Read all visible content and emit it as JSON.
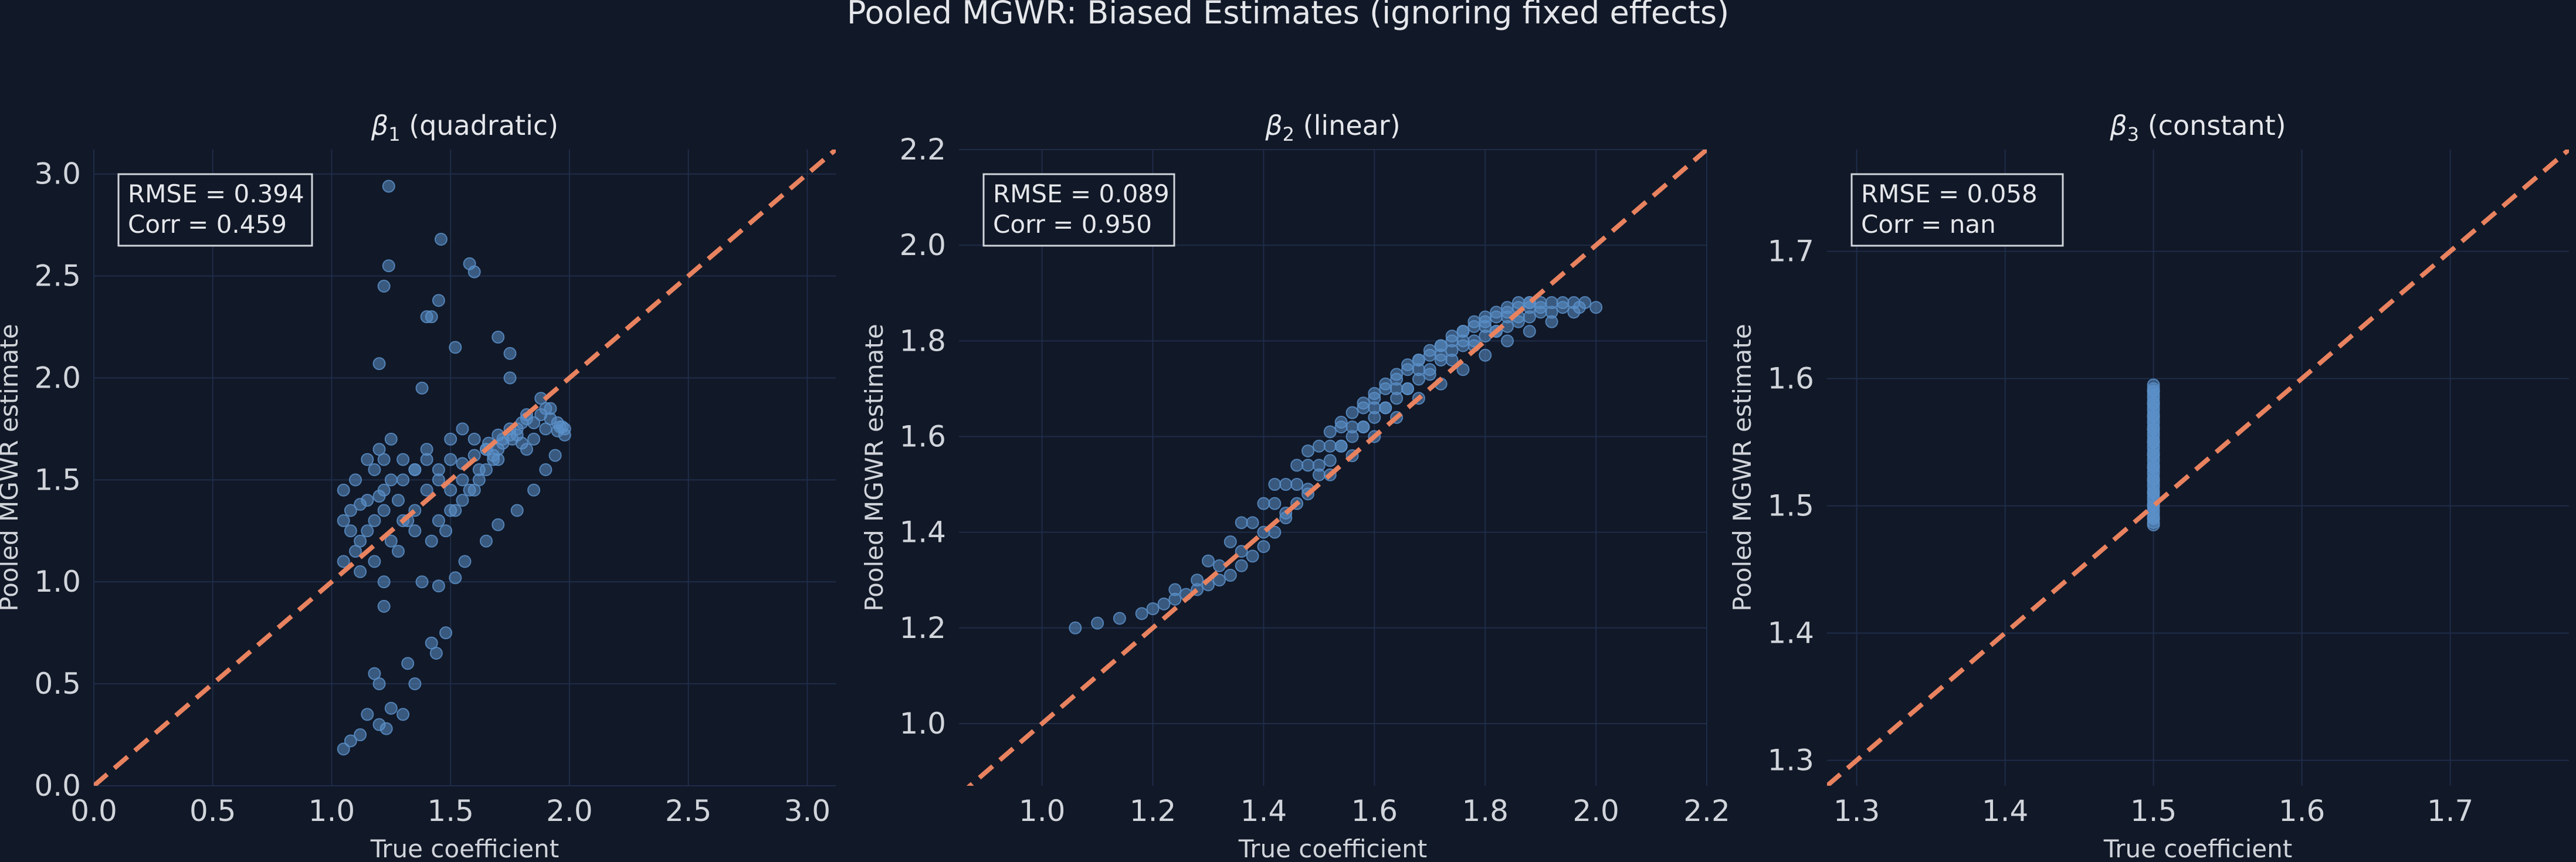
{
  "figure_title": "Pooled MGWR: Biased Estimates (ignoring fixed effects)",
  "colors": {
    "background": "#111827",
    "grid": "#1f2d4a",
    "points": "#5b8fc8",
    "reference_line": "#e8825f",
    "text": "#e5e7eb"
  },
  "chart_data": [
    {
      "type": "scatter",
      "title_symbol": "β",
      "title_sub": "1",
      "title_text": " (quadratic)",
      "xlabel": "True coefficient",
      "ylabel": "Pooled MGWR estimate",
      "xlim": [
        0.0,
        3.12
      ],
      "ylim": [
        0.0,
        3.12
      ],
      "xticks": [
        "0.0",
        "0.5",
        "1.0",
        "1.5",
        "2.0",
        "2.5",
        "3.0"
      ],
      "yticks": [
        "0.0",
        "0.5",
        "1.0",
        "1.5",
        "2.0",
        "2.5",
        "3.0"
      ],
      "grid": true,
      "reference_line": "y = x",
      "stats": [
        "RMSE = 0.394",
        "Corr = 0.459"
      ],
      "x": [
        1.05,
        1.08,
        1.12,
        1.15,
        1.2,
        1.22,
        1.25,
        1.08,
        1.12,
        1.18,
        1.22,
        1.28,
        1.32,
        1.05,
        1.1,
        1.15,
        1.25,
        1.3,
        1.35,
        1.4,
        1.18,
        1.22,
        1.3,
        1.35,
        1.4,
        1.45,
        1.5,
        1.55,
        1.45,
        1.5,
        1.55,
        1.6,
        1.62,
        1.65,
        1.68,
        1.7,
        1.72,
        1.75,
        1.78,
        1.8,
        1.82,
        1.85,
        1.88,
        1.9,
        1.92,
        1.95,
        1.97,
        1.98,
        1.6,
        1.65,
        1.7,
        1.75,
        1.8,
        1.85,
        1.9,
        1.95,
        1.5,
        1.55,
        1.6,
        1.65,
        1.7,
        1.4,
        1.45,
        1.5,
        1.55,
        1.3,
        1.35,
        1.2,
        1.25,
        1.15,
        1.1,
        1.05,
        1.12,
        1.18,
        1.22,
        1.28,
        1.35,
        1.42,
        1.48,
        1.52,
        1.58,
        1.62,
        1.68,
        1.72,
        1.78,
        1.82,
        1.88,
        1.92,
        1.96,
        1.24,
        1.24,
        1.46,
        1.45,
        1.58,
        1.6,
        1.2,
        1.22,
        1.4,
        1.42,
        1.52,
        1.7,
        1.75,
        1.75,
        1.38,
        1.2,
        1.23,
        1.48,
        1.18,
        1.2,
        1.15,
        1.3,
        1.12,
        1.05,
        1.08,
        1.25,
        1.42,
        1.44,
        1.22,
        1.32,
        1.35,
        1.38,
        1.45,
        1.52,
        1.56,
        1.65,
        1.7,
        1.78,
        1.85,
        1.9,
        1.94,
        1.98,
        1.82,
        1.76,
        1.66
      ],
      "y": [
        1.3,
        1.35,
        1.38,
        1.4,
        1.42,
        1.45,
        1.5,
        1.25,
        1.2,
        1.3,
        1.35,
        1.4,
        1.3,
        1.1,
        1.15,
        1.25,
        1.2,
        1.3,
        1.35,
        1.45,
        1.55,
        1.6,
        1.5,
        1.55,
        1.6,
        1.5,
        1.45,
        1.5,
        1.3,
        1.35,
        1.4,
        1.45,
        1.5,
        1.55,
        1.6,
        1.65,
        1.7,
        1.72,
        1.75,
        1.78,
        1.8,
        1.78,
        1.82,
        1.85,
        1.8,
        1.78,
        1.76,
        1.75,
        1.7,
        1.65,
        1.72,
        1.75,
        1.68,
        1.7,
        1.75,
        1.74,
        1.6,
        1.58,
        1.62,
        1.65,
        1.6,
        1.65,
        1.55,
        1.7,
        1.75,
        1.6,
        1.55,
        1.65,
        1.7,
        1.6,
        1.5,
        1.45,
        1.05,
        1.1,
        1.0,
        1.15,
        1.25,
        1.2,
        1.25,
        1.35,
        1.45,
        1.55,
        1.62,
        1.68,
        1.72,
        1.82,
        1.9,
        1.85,
        1.76,
        2.94,
        2.55,
        2.68,
        2.38,
        2.56,
        2.52,
        2.07,
        2.45,
        2.3,
        2.3,
        2.15,
        2.2,
        2.12,
        2.0,
        1.95,
        0.3,
        0.28,
        0.75,
        0.55,
        0.5,
        0.35,
        0.35,
        0.25,
        0.18,
        0.22,
        0.38,
        0.7,
        0.65,
        0.88,
        0.6,
        0.5,
        1.0,
        0.98,
        1.02,
        1.1,
        1.2,
        1.28,
        1.35,
        1.45,
        1.55,
        1.62,
        1.72,
        1.65,
        1.7,
        1.68
      ]
    },
    {
      "type": "scatter",
      "title_symbol": "β",
      "title_sub": "2",
      "title_text": " (linear)",
      "xlabel": "True coefficient",
      "ylabel": "Pooled MGWR estimate",
      "xlim": [
        0.85,
        2.2
      ],
      "ylim": [
        0.87,
        2.2
      ],
      "xticks": [
        "1.0",
        "1.2",
        "1.4",
        "1.6",
        "1.8",
        "2.0",
        "2.2"
      ],
      "yticks": [
        "1.0",
        "1.2",
        "1.4",
        "1.6",
        "1.8",
        "2.0",
        "2.2"
      ],
      "grid": true,
      "reference_line": "y = x",
      "stats": [
        "RMSE = 0.089",
        "Corr = 0.950"
      ],
      "x": [
        1.06,
        1.1,
        1.14,
        1.18,
        1.2,
        1.22,
        1.24,
        1.26,
        1.28,
        1.3,
        1.32,
        1.34,
        1.36,
        1.38,
        1.4,
        1.42,
        1.44,
        1.46,
        1.48,
        1.5,
        1.52,
        1.54,
        1.56,
        1.58,
        1.6,
        1.62,
        1.64,
        1.66,
        1.68,
        1.7,
        1.72,
        1.74,
        1.76,
        1.78,
        1.8,
        1.82,
        1.84,
        1.86,
        1.88,
        1.9,
        1.92,
        1.94,
        1.97,
        2.0,
        1.24,
        1.28,
        1.32,
        1.36,
        1.4,
        1.44,
        1.48,
        1.52,
        1.56,
        1.6,
        1.64,
        1.68,
        1.72,
        1.76,
        1.8,
        1.84,
        1.88,
        1.92,
        1.96,
        1.3,
        1.34,
        1.38,
        1.42,
        1.46,
        1.5,
        1.54,
        1.58,
        1.62,
        1.66,
        1.7,
        1.74,
        1.78,
        1.82,
        1.86,
        1.9,
        1.94,
        1.98,
        1.36,
        1.4,
        1.44,
        1.48,
        1.52,
        1.56,
        1.6,
        1.64,
        1.68,
        1.72,
        1.76,
        1.8,
        1.84,
        1.88,
        1.92,
        1.96,
        1.42,
        1.46,
        1.5,
        1.54,
        1.58,
        1.62,
        1.66,
        1.7,
        1.74,
        1.78,
        1.82,
        1.86,
        1.9,
        1.48,
        1.52,
        1.56,
        1.6,
        1.64,
        1.68,
        1.72,
        1.76,
        1.8,
        1.84,
        1.88,
        1.54,
        1.58,
        1.62,
        1.66,
        1.7,
        1.74,
        1.78,
        1.82,
        1.86,
        1.6,
        1.64,
        1.68,
        1.72,
        1.76,
        1.8,
        1.84,
        1.88
      ],
      "y": [
        1.2,
        1.21,
        1.22,
        1.23,
        1.24,
        1.25,
        1.26,
        1.27,
        1.28,
        1.29,
        1.3,
        1.31,
        1.33,
        1.35,
        1.37,
        1.4,
        1.43,
        1.46,
        1.49,
        1.52,
        1.55,
        1.58,
        1.6,
        1.62,
        1.64,
        1.66,
        1.68,
        1.7,
        1.72,
        1.74,
        1.76,
        1.78,
        1.79,
        1.8,
        1.81,
        1.82,
        1.83,
        1.84,
        1.85,
        1.86,
        1.86,
        1.87,
        1.87,
        1.87,
        1.28,
        1.3,
        1.33,
        1.36,
        1.4,
        1.44,
        1.48,
        1.52,
        1.56,
        1.6,
        1.64,
        1.68,
        1.71,
        1.74,
        1.77,
        1.8,
        1.82,
        1.84,
        1.86,
        1.34,
        1.38,
        1.42,
        1.46,
        1.5,
        1.54,
        1.58,
        1.62,
        1.66,
        1.7,
        1.73,
        1.76,
        1.79,
        1.82,
        1.85,
        1.87,
        1.88,
        1.88,
        1.42,
        1.46,
        1.5,
        1.54,
        1.58,
        1.62,
        1.66,
        1.7,
        1.74,
        1.77,
        1.8,
        1.83,
        1.85,
        1.87,
        1.88,
        1.88,
        1.5,
        1.54,
        1.58,
        1.62,
        1.66,
        1.7,
        1.74,
        1.77,
        1.8,
        1.83,
        1.85,
        1.87,
        1.88,
        1.57,
        1.61,
        1.65,
        1.69,
        1.73,
        1.76,
        1.79,
        1.82,
        1.84,
        1.86,
        1.88,
        1.63,
        1.67,
        1.71,
        1.75,
        1.78,
        1.81,
        1.84,
        1.86,
        1.88,
        1.68,
        1.72,
        1.76,
        1.79,
        1.82,
        1.85,
        1.87,
        1.88
      ]
    },
    {
      "type": "scatter",
      "title_symbol": "β",
      "title_sub": "3",
      "title_text": " (constant)",
      "xlabel": "True coefficient",
      "ylabel": "Pooled MGWR estimate",
      "xlim": [
        1.28,
        1.78
      ],
      "ylim": [
        1.28,
        1.78
      ],
      "xticks": [
        "1.3",
        "1.4",
        "1.5",
        "1.6",
        "1.7"
      ],
      "yticks": [
        "1.3",
        "1.4",
        "1.5",
        "1.6",
        "1.7"
      ],
      "grid": true,
      "reference_line": "y = x",
      "stats": [
        "RMSE = 0.058",
        "Corr = nan"
      ],
      "x": [
        1.5,
        1.5,
        1.5,
        1.5,
        1.5,
        1.5,
        1.5,
        1.5,
        1.5,
        1.5,
        1.5,
        1.5,
        1.5,
        1.5,
        1.5,
        1.5,
        1.5,
        1.5,
        1.5,
        1.5,
        1.5,
        1.5,
        1.5,
        1.5,
        1.5,
        1.5,
        1.5,
        1.5,
        1.5,
        1.5,
        1.5,
        1.5,
        1.5,
        1.5,
        1.5,
        1.5,
        1.5,
        1.5,
        1.5,
        1.5,
        1.5,
        1.5,
        1.5,
        1.5,
        1.5,
        1.5,
        1.5,
        1.5,
        1.5,
        1.5,
        1.5,
        1.5,
        1.5,
        1.5,
        1.5,
        1.5
      ],
      "y": [
        1.485,
        1.487,
        1.49,
        1.492,
        1.495,
        1.497,
        1.5,
        1.502,
        1.505,
        1.507,
        1.51,
        1.512,
        1.515,
        1.517,
        1.52,
        1.522,
        1.525,
        1.527,
        1.53,
        1.532,
        1.535,
        1.537,
        1.54,
        1.542,
        1.545,
        1.547,
        1.55,
        1.552,
        1.555,
        1.557,
        1.56,
        1.562,
        1.565,
        1.567,
        1.57,
        1.572,
        1.575,
        1.577,
        1.58,
        1.582,
        1.585,
        1.587,
        1.59,
        1.592,
        1.595,
        1.52,
        1.53,
        1.54,
        1.55,
        1.56,
        1.57,
        1.58,
        1.5,
        1.51,
        1.49,
        1.59
      ]
    }
  ]
}
